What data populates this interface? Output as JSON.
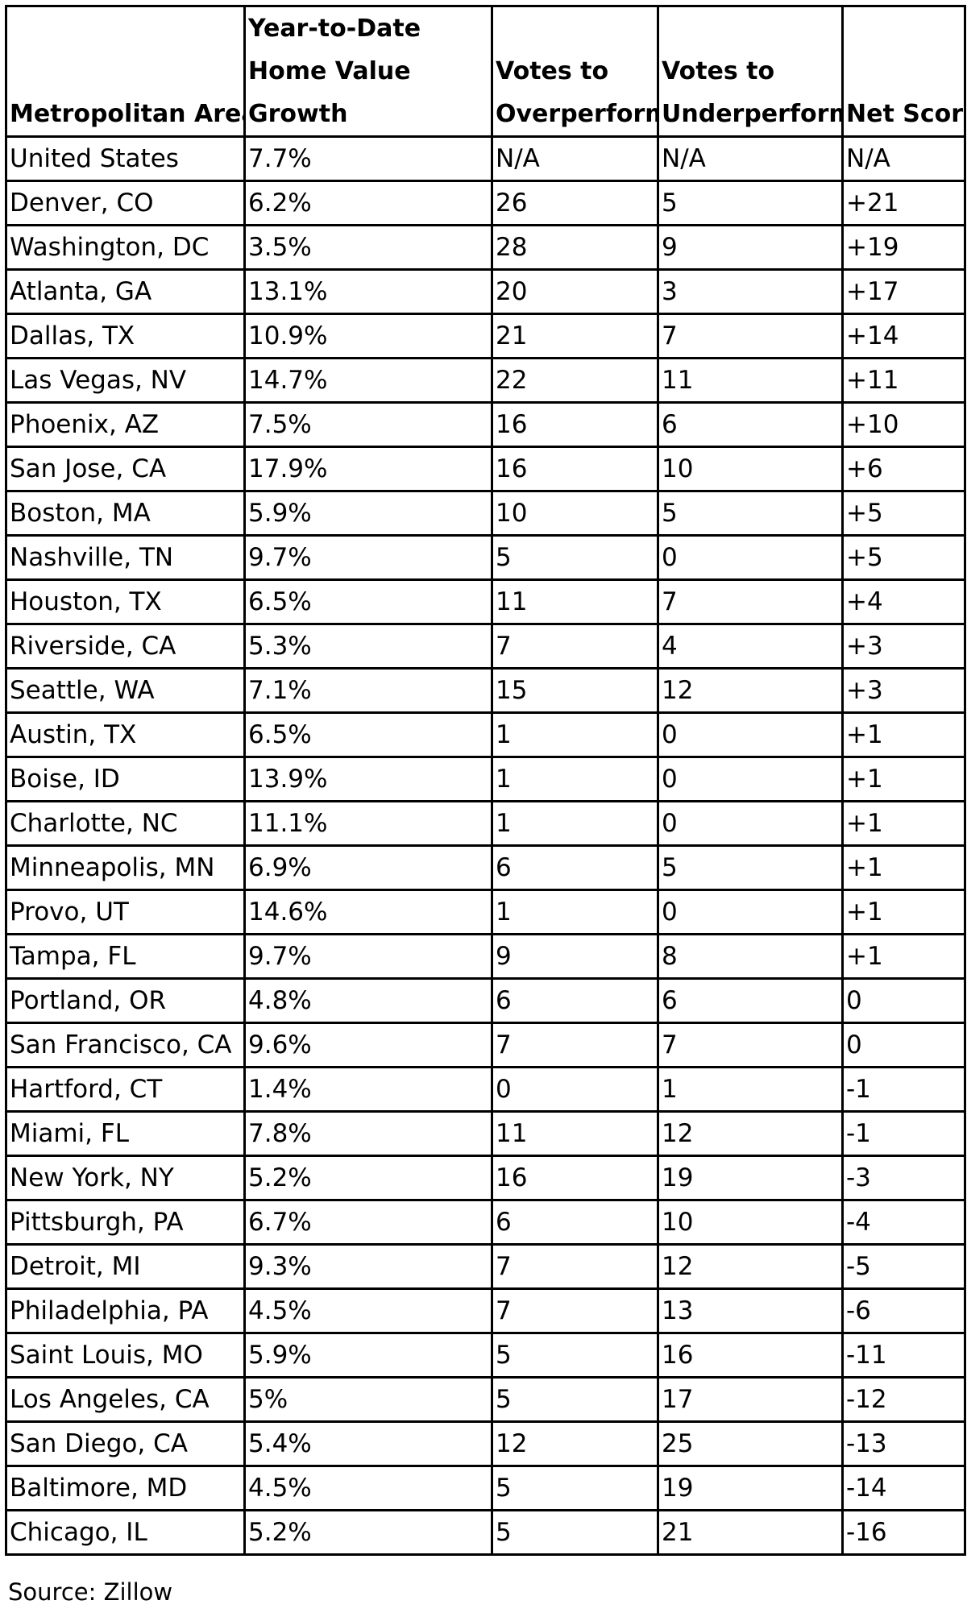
{
  "table": {
    "headers": [
      "Metropolitan Area",
      "Year-to-Date Home Value Growth",
      "Votes to Overperform",
      "Votes to Underperform",
      "Net Score"
    ],
    "rows": [
      [
        "United States",
        "7.7%",
        "N/A",
        "N/A",
        "N/A"
      ],
      [
        "Denver, CO",
        "6.2%",
        "26",
        "5",
        "+21"
      ],
      [
        "Washington, DC",
        "3.5%",
        "28",
        "9",
        "+19"
      ],
      [
        "Atlanta, GA",
        "13.1%",
        "20",
        "3",
        "+17"
      ],
      [
        "Dallas, TX",
        "10.9%",
        "21",
        "7",
        "+14"
      ],
      [
        "Las Vegas, NV",
        "14.7%",
        "22",
        "11",
        "+11"
      ],
      [
        "Phoenix, AZ",
        "7.5%",
        "16",
        "6",
        "+10"
      ],
      [
        "San Jose, CA",
        "17.9%",
        "16",
        "10",
        "+6"
      ],
      [
        "Boston, MA",
        "5.9%",
        "10",
        "5",
        "+5"
      ],
      [
        "Nashville, TN",
        "9.7%",
        "5",
        "0",
        "+5"
      ],
      [
        "Houston, TX",
        "6.5%",
        "11",
        "7",
        "+4"
      ],
      [
        "Riverside, CA",
        "5.3%",
        "7",
        "4",
        "+3"
      ],
      [
        "Seattle, WA",
        "7.1%",
        "15",
        "12",
        "+3"
      ],
      [
        "Austin, TX",
        "6.5%",
        "1",
        "0",
        "+1"
      ],
      [
        "Boise, ID",
        "13.9%",
        "1",
        "0",
        "+1"
      ],
      [
        "Charlotte, NC",
        "11.1%",
        "1",
        "0",
        "+1"
      ],
      [
        "Minneapolis, MN",
        "6.9%",
        "6",
        "5",
        "+1"
      ],
      [
        "Provo, UT",
        "14.6%",
        "1",
        "0",
        "+1"
      ],
      [
        "Tampa, FL",
        "9.7%",
        "9",
        "8",
        "+1"
      ],
      [
        "Portland, OR",
        "4.8%",
        "6",
        "6",
        "0"
      ],
      [
        "San Francisco, CA",
        "9.6%",
        "7",
        "7",
        "0"
      ],
      [
        "Hartford, CT",
        "1.4%",
        "0",
        "1",
        "-1"
      ],
      [
        "Miami, FL",
        "7.8%",
        "11",
        "12",
        "-1"
      ],
      [
        "New York, NY",
        "5.2%",
        "16",
        "19",
        "-3"
      ],
      [
        "Pittsburgh, PA",
        "6.7%",
        "6",
        "10",
        "-4"
      ],
      [
        "Detroit, MI",
        "9.3%",
        "7",
        "12",
        "-5"
      ],
      [
        "Philadelphia, PA",
        "4.5%",
        "7",
        "13",
        "-6"
      ],
      [
        "Saint Louis, MO",
        "5.9%",
        "5",
        "16",
        "-11"
      ],
      [
        "Los Angeles, CA",
        "5%",
        "5",
        "17",
        "-12"
      ],
      [
        "San Diego, CA",
        "5.4%",
        "12",
        "25",
        "-13"
      ],
      [
        "Baltimore, MD",
        "4.5%",
        "5",
        "19",
        "-14"
      ],
      [
        "Chicago, IL",
        "5.2%",
        "5",
        "21",
        "-16"
      ]
    ]
  },
  "source": "Source: Zillow"
}
